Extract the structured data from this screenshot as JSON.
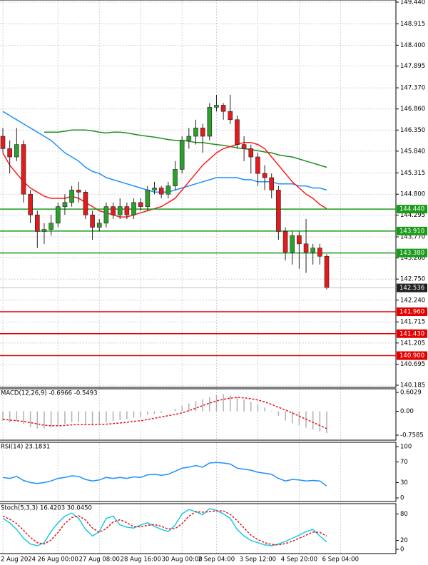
{
  "chart_data": [
    {
      "type": "candlestick",
      "categories": [
        "2 Aug 2024",
        null,
        null,
        null,
        null,
        null,
        null,
        null,
        "26 Aug 00:00",
        null,
        null,
        null,
        null,
        null,
        "27 Aug 08:00",
        null,
        null,
        null,
        null,
        null,
        "28 Aug 16:00",
        null,
        null,
        null,
        null,
        null,
        "30 Aug 00:00",
        null,
        null,
        null,
        null,
        "2 Sep 04:00",
        null,
        null,
        null,
        null,
        null,
        "3 Sep 12:00",
        null,
        null,
        null,
        null,
        null,
        "4 Sep 20:00",
        null,
        null,
        null,
        null,
        null,
        "6 Sep 04:00"
      ],
      "open": [
        146.2,
        145.9,
        145.7,
        146.0,
        144.8,
        144.3,
        143.9,
        143.95,
        144.1,
        144.5,
        144.6,
        144.9,
        144.85,
        144.3,
        144.0,
        144.1,
        144.5,
        144.3,
        144.5,
        144.3,
        144.6,
        144.5,
        144.9,
        144.95,
        144.8,
        145.0,
        145.4,
        146.1,
        146.2,
        146.4,
        146.2,
        146.9,
        146.95,
        146.8,
        146.6,
        146.0,
        145.9,
        145.7,
        145.3,
        145.2,
        144.9,
        143.9,
        143.4,
        143.8,
        143.6,
        143.4,
        143.5,
        143.3,
        null,
        null
      ],
      "high": [
        146.4,
        146.1,
        146.4,
        146.1,
        144.9,
        144.4,
        144.1,
        144.3,
        144.6,
        144.8,
        145.0,
        145.1,
        144.9,
        144.4,
        144.2,
        144.6,
        144.6,
        144.7,
        144.6,
        144.7,
        144.7,
        145.0,
        145.1,
        145.0,
        145.1,
        145.6,
        146.2,
        146.4,
        146.6,
        146.5,
        147.0,
        147.2,
        147.0,
        147.2,
        146.7,
        146.2,
        146.0,
        145.8,
        145.5,
        145.3,
        145.0,
        144.0,
        143.9,
        143.9,
        144.2,
        143.6,
        143.6,
        143.35,
        null,
        null
      ],
      "low": [
        145.8,
        145.3,
        145.6,
        144.6,
        144.1,
        143.5,
        143.6,
        143.8,
        144.0,
        144.3,
        144.5,
        144.6,
        144.2,
        143.7,
        143.9,
        144.0,
        144.2,
        144.2,
        144.2,
        144.2,
        144.4,
        144.4,
        144.8,
        144.7,
        144.7,
        144.9,
        145.3,
        145.9,
        146.0,
        145.8,
        146.1,
        146.8,
        146.6,
        146.5,
        145.9,
        145.6,
        145.3,
        145.0,
        144.9,
        144.7,
        143.7,
        143.2,
        143.1,
        143.0,
        142.9,
        143.1,
        143.1,
        142.5,
        null,
        null
      ],
      "close": [
        145.9,
        145.7,
        146.0,
        144.8,
        144.3,
        143.9,
        143.95,
        144.1,
        144.5,
        144.6,
        144.9,
        144.85,
        144.3,
        144.0,
        144.1,
        144.5,
        144.3,
        144.5,
        144.3,
        144.6,
        144.5,
        144.9,
        144.95,
        144.8,
        145.0,
        145.4,
        146.1,
        146.2,
        146.4,
        146.2,
        146.9,
        146.95,
        146.8,
        146.6,
        146.0,
        145.9,
        145.7,
        145.3,
        145.2,
        144.9,
        143.9,
        143.4,
        143.8,
        143.6,
        143.4,
        143.5,
        143.3,
        142.536,
        null,
        null
      ],
      "up_color": "#2ca02c",
      "down_color": "#e41a1c",
      "series": [
        {
          "color": "#1e90ff",
          "values": [
            146.8,
            146.7,
            146.6,
            146.5,
            146.4,
            146.3,
            146.2,
            146.1,
            145.95,
            145.8,
            145.7,
            145.6,
            145.45,
            145.35,
            145.3,
            145.2,
            145.15,
            145.1,
            145.05,
            145.0,
            144.95,
            144.9,
            144.85,
            144.85,
            144.85,
            144.9,
            144.95,
            145.0,
            145.05,
            145.1,
            145.15,
            145.2,
            145.2,
            145.2,
            145.2,
            145.15,
            145.15,
            145.1,
            145.1,
            145.1,
            145.05,
            145.05,
            145.05,
            145.0,
            145.0,
            144.95,
            144.95,
            144.9,
            null,
            null
          ]
        },
        {
          "color": "#1f8f1f",
          "values": [
            null,
            null,
            null,
            null,
            null,
            null,
            146.3,
            146.3,
            146.3,
            146.32,
            146.35,
            146.35,
            146.35,
            146.33,
            146.3,
            146.28,
            146.3,
            146.3,
            146.28,
            146.25,
            146.22,
            146.2,
            146.18,
            146.15,
            146.12,
            146.1,
            146.1,
            146.08,
            146.05,
            146.05,
            146.02,
            146.0,
            145.98,
            145.95,
            145.92,
            145.9,
            145.88,
            145.85,
            145.82,
            145.8,
            145.75,
            145.72,
            145.7,
            145.65,
            145.6,
            145.55,
            145.5,
            145.45,
            null,
            null
          ]
        },
        {
          "color": "#ff1a1a",
          "values": [
            145.8,
            145.5,
            145.3,
            145.1,
            144.95,
            144.85,
            144.75,
            144.7,
            144.7,
            144.7,
            144.75,
            144.7,
            144.6,
            144.5,
            144.4,
            144.35,
            144.3,
            144.25,
            144.25,
            144.3,
            144.35,
            144.4,
            144.45,
            144.5,
            144.6,
            144.7,
            144.9,
            145.1,
            145.3,
            145.5,
            145.65,
            145.8,
            145.9,
            145.95,
            146.0,
            146.05,
            146.05,
            146.0,
            145.9,
            145.7,
            145.5,
            145.3,
            145.1,
            144.95,
            144.8,
            144.7,
            144.55,
            144.45,
            null,
            null
          ]
        }
      ],
      "levels": [
        {
          "value": 144.44,
          "label": "144.440",
          "color": "#1a9c1a"
        },
        {
          "value": 143.91,
          "label": "143.910",
          "color": "#1a9c1a"
        },
        {
          "value": 143.38,
          "label": "143.380",
          "color": "#1a9c1a"
        },
        {
          "value": 141.96,
          "label": "141.960",
          "color": "#e60000"
        },
        {
          "value": 141.43,
          "label": "141.430",
          "color": "#e60000"
        },
        {
          "value": 140.9,
          "label": "140.900",
          "color": "#e60000"
        }
      ],
      "current_price": 142.536,
      "ylim": [
        140.185,
        149.44
      ],
      "yticks": [
        {
          "value": 140.185,
          "label": "140.185"
        },
        140.695,
        141.205,
        141.715,
        {
          "value": 142.24,
          "label": "142.240"
        },
        {
          "value": 142.75,
          "label": "142.750"
        },
        {
          "value": 143.26,
          "label": "143.260"
        },
        {
          "value": 143.77,
          "label": "143.770"
        },
        144.295,
        {
          "value": 144.8,
          "label": "144.800"
        },
        145.315,
        {
          "value": 145.84,
          "label": "145.840"
        },
        {
          "value": 146.35,
          "label": "146.350"
        },
        {
          "value": 146.86,
          "label": "146.860"
        },
        {
          "value": 147.37,
          "label": "147.370"
        },
        147.895,
        {
          "value": 148.4,
          "label": "148.400"
        },
        148.915,
        {
          "value": 149.44,
          "label": "149.440"
        }
      ],
      "grid": true
    },
    {
      "type": "macd",
      "title": "MACD(12,26,9) -0.6966 -0.5493",
      "series": [
        {
          "color": "#b0b0b0",
          "values": [
            -0.3,
            -0.35,
            -0.3,
            -0.4,
            -0.5,
            -0.55,
            -0.55,
            -0.5,
            -0.45,
            -0.4,
            -0.35,
            -0.35,
            -0.4,
            -0.45,
            -0.4,
            -0.35,
            -0.3,
            -0.28,
            -0.25,
            -0.2,
            -0.18,
            -0.12,
            -0.08,
            -0.05,
            0,
            0.08,
            0.18,
            0.25,
            0.32,
            0.38,
            0.45,
            0.52,
            0.55,
            0.52,
            0.45,
            0.38,
            0.3,
            0.22,
            0.12,
            0.02,
            -0.15,
            -0.3,
            -0.38,
            -0.45,
            -0.52,
            -0.58,
            -0.64,
            -0.6966,
            null,
            null
          ]
        },
        {
          "color": "#e41a1c",
          "values": [
            -0.25,
            -0.28,
            -0.3,
            -0.32,
            -0.36,
            -0.4,
            -0.44,
            -0.46,
            -0.46,
            -0.45,
            -0.43,
            -0.42,
            -0.42,
            -0.42,
            -0.42,
            -0.41,
            -0.39,
            -0.37,
            -0.35,
            -0.32,
            -0.3,
            -0.26,
            -0.22,
            -0.18,
            -0.14,
            -0.1,
            -0.05,
            0.02,
            0.1,
            0.18,
            0.26,
            0.33,
            0.38,
            0.42,
            0.44,
            0.43,
            0.4,
            0.36,
            0.3,
            0.22,
            0.13,
            0.04,
            -0.05,
            -0.15,
            -0.25,
            -0.35,
            -0.45,
            -0.5493,
            null,
            null
          ]
        }
      ],
      "ylim": [
        -0.7585,
        0.6029
      ],
      "yticks": [
        -0.7585,
        {
          "value": 0,
          "label": "0.00"
        },
        0.6029
      ]
    },
    {
      "type": "line",
      "title": "RSI(14) 23.1831",
      "series": [
        {
          "color": "#1e90ff",
          "values": [
            40,
            38,
            42,
            34,
            30,
            28,
            30,
            33,
            38,
            40,
            43,
            42,
            36,
            33,
            35,
            40,
            38,
            40,
            38,
            41,
            40,
            45,
            46,
            44,
            46,
            52,
            58,
            60,
            63,
            60,
            68,
            69,
            68,
            66,
            58,
            56,
            54,
            50,
            48,
            46,
            38,
            33,
            36,
            35,
            33,
            34,
            33,
            23.1831,
            null,
            null
          ]
        }
      ],
      "ylim": [
        0,
        100
      ],
      "yticks": [
        0,
        30,
        70,
        100
      ]
    },
    {
      "type": "line",
      "title": "Stoch(5,3,3) 16.4203 30.0450",
      "series": [
        {
          "color": "#1ec8e6",
          "values": [
            70,
            60,
            45,
            25,
            12,
            8,
            15,
            40,
            60,
            75,
            82,
            70,
            45,
            30,
            40,
            70,
            75,
            55,
            50,
            48,
            55,
            60,
            52,
            45,
            40,
            55,
            80,
            90,
            85,
            78,
            92,
            88,
            80,
            70,
            45,
            30,
            20,
            15,
            10,
            8,
            12,
            18,
            25,
            32,
            40,
            45,
            30,
            16.4203,
            null,
            null
          ]
        },
        {
          "color": "#e41a1c",
          "dashed": true,
          "values": [
            75,
            68,
            58,
            43,
            27,
            15,
            12,
            21,
            38,
            58,
            72,
            76,
            66,
            48,
            38,
            47,
            62,
            67,
            60,
            51,
            51,
            54,
            56,
            52,
            46,
            47,
            58,
            75,
            85,
            84,
            85,
            87,
            87,
            79,
            65,
            48,
            32,
            22,
            15,
            11,
            10,
            13,
            18,
            25,
            32,
            39,
            38,
            30.045,
            null,
            null
          ]
        }
      ],
      "ylim": [
        0,
        100
      ],
      "yticks": [
        0,
        20,
        80
      ]
    }
  ]
}
